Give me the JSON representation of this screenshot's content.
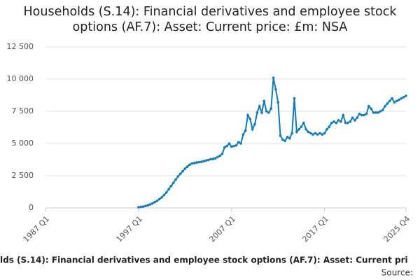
{
  "chart_data": {
    "type": "line",
    "title": "Households (S.14): Financial derivatives and employee stock options (AF.7): Asset: Current price: £m: NSA",
    "footer": "lds (S.14): Financial derivatives and employee stock options (AF.7): Asset: Current pri",
    "source": "Source:",
    "categories": [
      "1987 Q1",
      null,
      null,
      null,
      null,
      null,
      null,
      null,
      null,
      null,
      null,
      null,
      null,
      null,
      null,
      null,
      null,
      null,
      null,
      null,
      null,
      null,
      null,
      null,
      null,
      null,
      null,
      null,
      null,
      null,
      null,
      null,
      null,
      null,
      null,
      null,
      null,
      null,
      null,
      null,
      "1997 Q1",
      null,
      null,
      null,
      null,
      null,
      null,
      null,
      null,
      null,
      null,
      null,
      null,
      null,
      null,
      null,
      null,
      null,
      null,
      null,
      null,
      null,
      null,
      null,
      null,
      null,
      null,
      null,
      null,
      null,
      null,
      null,
      null,
      null,
      null,
      null,
      null,
      null,
      null,
      null,
      "2007 Q1",
      null,
      null,
      null,
      null,
      null,
      null,
      null,
      null,
      null,
      null,
      null,
      null,
      null,
      null,
      null,
      null,
      null,
      null,
      null,
      null,
      null,
      null,
      null,
      null,
      null,
      null,
      null,
      null,
      null,
      null,
      null,
      null,
      null,
      null,
      null,
      null,
      null,
      null,
      null,
      "2017 Q1",
      null,
      null,
      null,
      null,
      null,
      null,
      null,
      null,
      null,
      null,
      null,
      null,
      null,
      null,
      null,
      null,
      null,
      null,
      null,
      null,
      null,
      null,
      null,
      null,
      null,
      null,
      null,
      null,
      null,
      null,
      null,
      null,
      null,
      null,
      "2025 Q4"
    ],
    "series": [
      {
        "color": "#0f7cbf",
        "values": [
          null,
          null,
          null,
          null,
          null,
          null,
          null,
          null,
          null,
          null,
          null,
          null,
          null,
          null,
          null,
          null,
          null,
          null,
          null,
          null,
          null,
          null,
          null,
          null,
          null,
          null,
          null,
          null,
          null,
          null,
          null,
          null,
          null,
          null,
          null,
          null,
          null,
          null,
          null,
          null,
          50,
          80,
          100,
          150,
          200,
          270,
          350,
          450,
          550,
          680,
          820,
          1000,
          1200,
          1450,
          1700,
          1950,
          2200,
          2450,
          2650,
          2850,
          3050,
          3200,
          3350,
          3450,
          3480,
          3520,
          3550,
          3580,
          3620,
          3680,
          3720,
          3780,
          3800,
          3850,
          3950,
          4050,
          4200,
          4700,
          4800,
          5000,
          4750,
          4800,
          4850,
          5100,
          5000,
          5700,
          6000,
          7200,
          6900,
          6100,
          6500,
          7400,
          7900,
          7400,
          8300,
          7500,
          7400,
          7700,
          10100,
          9200,
          8200,
          5600,
          5300,
          5200,
          5500,
          5400,
          5800,
          8500,
          5900,
          6100,
          6300,
          6600,
          6100,
          5900,
          5800,
          5700,
          5800,
          5700,
          5800,
          5700,
          5800,
          6100,
          6300,
          6600,
          6700,
          6600,
          6800,
          6700,
          7200,
          6600,
          6600,
          6700,
          7000,
          6800,
          7000,
          7300,
          7200,
          7200,
          7300,
          7900,
          7700,
          7400,
          7400,
          7400,
          7500,
          7600,
          7900,
          8100,
          8300,
          8500,
          8200,
          8300,
          8400,
          8500,
          8600,
          8700
        ]
      }
    ],
    "ylim": [
      0,
      12500
    ],
    "yticks": [
      0,
      {
        "value": 2500,
        "label": "2 500"
      },
      {
        "value": 5000,
        "label": "5 000"
      },
      {
        "value": 7500,
        "label": "7 500"
      },
      {
        "value": 10000,
        "label": "10 000"
      },
      {
        "value": 12500,
        "label": "12 500"
      }
    ],
    "grid": true
  }
}
